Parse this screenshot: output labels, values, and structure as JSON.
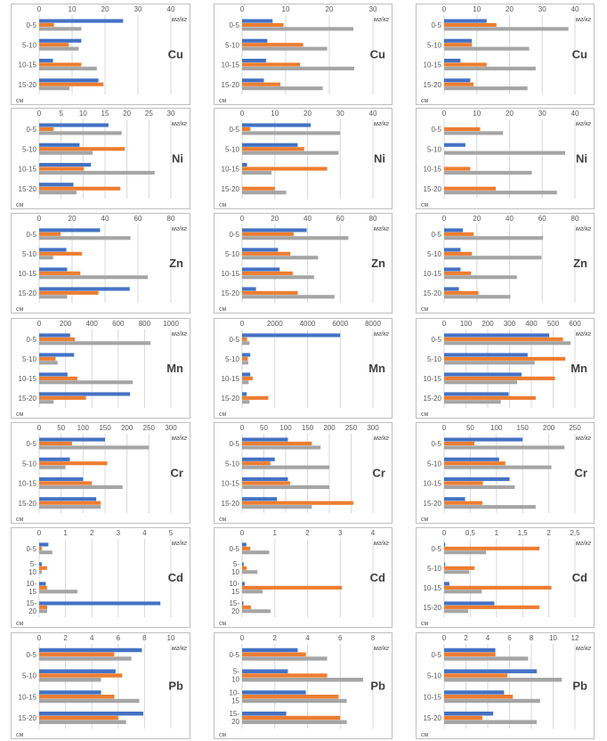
{
  "colors": {
    "s1": "#4472C4",
    "s2": "#ED7D31",
    "s3": "#A5A5A5",
    "grid": "#D9D9D9",
    "text": "#595959",
    "border": "#BFBFBF"
  },
  "unit_label": "мг/кг",
  "depth_suffix": "см",
  "chart_data": [
    {
      "type": "bar",
      "element": "Cu",
      "row": 0,
      "col": 0,
      "xlim": [
        0,
        40
      ],
      "ticks": [
        "0",
        "10",
        "20",
        "30",
        "40"
      ],
      "categories": [
        "0-5",
        "5-10",
        "10-15",
        "15-20"
      ],
      "series": [
        {
          "name": "s1",
          "values": [
            25.5,
            12.8,
            4.2,
            18
          ]
        },
        {
          "name": "s2",
          "values": [
            4.5,
            9,
            12.8,
            19.5
          ]
        },
        {
          "name": "s3",
          "values": [
            12.8,
            12,
            17.5,
            9.2
          ]
        }
      ]
    },
    {
      "type": "bar",
      "element": "Cu",
      "row": 0,
      "col": 1,
      "xlim": [
        0,
        30
      ],
      "ticks": [
        "0",
        "10",
        "20",
        "30"
      ],
      "categories": [
        "0-5",
        "5-10",
        "10-15",
        "15-20"
      ],
      "series": [
        {
          "name": "s1",
          "values": [
            7,
            5.8,
            5.5,
            5
          ]
        },
        {
          "name": "s2",
          "values": [
            9.5,
            14,
            13.3,
            8.8
          ]
        },
        {
          "name": "s3",
          "values": [
            25.5,
            19.5,
            25.7,
            18.5
          ]
        }
      ]
    },
    {
      "type": "bar",
      "element": "Cu",
      "row": 0,
      "col": 2,
      "xlim": [
        0,
        40
      ],
      "ticks": [
        "0",
        "10",
        "20",
        "30",
        "40"
      ],
      "categories": [
        "0-5",
        "5-10",
        "10-15",
        "15-20"
      ],
      "series": [
        {
          "name": "s1",
          "values": [
            13,
            8.5,
            5,
            8
          ]
        },
        {
          "name": "s2",
          "values": [
            16,
            8.5,
            13,
            9
          ]
        },
        {
          "name": "s3",
          "values": [
            38,
            26,
            28,
            25.5
          ]
        }
      ]
    },
    {
      "type": "bar",
      "element": "Ni",
      "row": 1,
      "col": 0,
      "xlim": [
        0,
        30
      ],
      "ticks": [
        "0",
        "5",
        "10",
        "15",
        "20",
        "25",
        "30"
      ],
      "categories": [
        "0-5",
        "5-10",
        "10-15",
        "15-20"
      ],
      "series": [
        {
          "name": "s1",
          "values": [
            15.8,
            9.2,
            11.8,
            7.8
          ]
        },
        {
          "name": "s2",
          "values": [
            3.3,
            19.5,
            10.2,
            18.5
          ]
        },
        {
          "name": "s3",
          "values": [
            18.8,
            12.2,
            26.3,
            8.5
          ]
        }
      ]
    },
    {
      "type": "bar",
      "element": "Ni",
      "row": 1,
      "col": 1,
      "xlim": [
        0,
        40
      ],
      "ticks": [
        "0",
        "10",
        "20",
        "30",
        "40"
      ],
      "categories": [
        "0-5",
        "5-10",
        "10-15",
        "15-20"
      ],
      "series": [
        {
          "name": "s1",
          "values": [
            21,
            17,
            1.5,
            0
          ]
        },
        {
          "name": "s2",
          "values": [
            2.5,
            19,
            26,
            10
          ]
        },
        {
          "name": "s3",
          "values": [
            30,
            29.5,
            9,
            13.5
          ]
        }
      ]
    },
    {
      "type": "bar",
      "element": "Ni",
      "row": 1,
      "col": 2,
      "xlim": [
        0,
        40
      ],
      "ticks": [
        "0",
        "10",
        "20",
        "30",
        "40"
      ],
      "categories": [
        "0-5",
        "5-10",
        "10-15",
        "15-20"
      ],
      "series": [
        {
          "name": "s1",
          "values": [
            0,
            6.5,
            0,
            0
          ]
        },
        {
          "name": "s2",
          "values": [
            11,
            0,
            8,
            15.8
          ]
        },
        {
          "name": "s3",
          "values": [
            18,
            37,
            26.8,
            34.5
          ]
        }
      ]
    },
    {
      "type": "bar",
      "element": "Zn",
      "row": 2,
      "col": 0,
      "xlim": [
        0,
        80
      ],
      "ticks": [
        "0",
        "20",
        "40",
        "60",
        "80"
      ],
      "categories": [
        "0-5",
        "5-10",
        "10-15",
        "15-20"
      ],
      "series": [
        {
          "name": "s1",
          "values": [
            37,
            16.5,
            17,
            55
          ]
        },
        {
          "name": "s2",
          "values": [
            13,
            26,
            25,
            36
          ]
        },
        {
          "name": "s3",
          "values": [
            55.5,
            8.5,
            66,
            17
          ]
        }
      ]
    },
    {
      "type": "bar",
      "element": "Zn",
      "row": 2,
      "col": 1,
      "xlim": [
        0,
        80
      ],
      "ticks": [
        "0",
        "20",
        "40",
        "60",
        "80"
      ],
      "categories": [
        "0-5",
        "5-10",
        "10-15",
        "15-20"
      ],
      "series": [
        {
          "name": "s1",
          "values": [
            39.5,
            22,
            23,
            8.5
          ]
        },
        {
          "name": "s2",
          "values": [
            31.5,
            29.5,
            31,
            34
          ]
        },
        {
          "name": "s3",
          "values": [
            65,
            46.5,
            44,
            56.5
          ]
        }
      ]
    },
    {
      "type": "bar",
      "element": "Zn",
      "row": 2,
      "col": 2,
      "xlim": [
        0,
        80
      ],
      "ticks": [
        "0",
        "20",
        "40",
        "60",
        "80"
      ],
      "categories": [
        "0-5",
        "5-10",
        "10-15",
        "15-20"
      ],
      "series": [
        {
          "name": "s1",
          "values": [
            11.5,
            10,
            10,
            9
          ]
        },
        {
          "name": "s2",
          "values": [
            18,
            17,
            16.5,
            21
          ]
        },
        {
          "name": "s3",
          "values": [
            60.5,
            59.5,
            44.5,
            40.5
          ]
        }
      ]
    },
    {
      "type": "bar",
      "element": "Mn",
      "row": 3,
      "col": 0,
      "xlim": [
        0,
        1000
      ],
      "ticks": [
        "0",
        "200",
        "400",
        "600",
        "800",
        "1000"
      ],
      "categories": [
        "0-5",
        "5-10",
        "10-15",
        "15-20"
      ],
      "series": [
        {
          "name": "s1",
          "values": [
            235,
            265,
            215,
            690
          ]
        },
        {
          "name": "s2",
          "values": [
            270,
            125,
            290,
            355
          ]
        },
        {
          "name": "s3",
          "values": [
            845,
            140,
            710,
            110
          ]
        }
      ]
    },
    {
      "type": "bar",
      "element": "Mn",
      "row": 3,
      "col": 1,
      "xlim": [
        0,
        8000
      ],
      "ticks": [
        "0",
        "2000",
        "4000",
        "6000",
        "8000"
      ],
      "categories": [
        "0-5",
        "5-10",
        "10-15",
        "15-20"
      ],
      "series": [
        {
          "name": "s1",
          "values": [
            6000,
            500,
            500,
            280
          ]
        },
        {
          "name": "s2",
          "values": [
            300,
            350,
            650,
            1600
          ]
        },
        {
          "name": "s3",
          "values": [
            450,
            380,
            400,
            450
          ]
        }
      ]
    },
    {
      "type": "bar",
      "element": "Mn",
      "row": 3,
      "col": 2,
      "xlim": [
        0,
        600
      ],
      "ticks": [
        "0",
        "100",
        "200",
        "300",
        "400",
        "500",
        "600"
      ],
      "categories": [
        "0-5",
        "5-10",
        "10-15",
        "15-20"
      ],
      "series": [
        {
          "name": "s1",
          "values": [
            482,
            383,
            355,
            296
          ]
        },
        {
          "name": "s2",
          "values": [
            545,
            555,
            508,
            420
          ]
        },
        {
          "name": "s3",
          "values": [
            580,
            415,
            335,
            260
          ]
        }
      ]
    },
    {
      "type": "bar",
      "element": "Cr",
      "row": 4,
      "col": 0,
      "xlim": [
        0,
        300
      ],
      "ticks": [
        "0",
        "50",
        "100",
        "150",
        "200",
        "250",
        "300"
      ],
      "categories": [
        "0-5",
        "5-10",
        "10-15",
        "15-20"
      ],
      "series": [
        {
          "name": "s1",
          "values": [
            150,
            70,
            100,
            130
          ]
        },
        {
          "name": "s2",
          "values": [
            75,
            155,
            120,
            140
          ]
        },
        {
          "name": "s3",
          "values": [
            250,
            60,
            190,
            140
          ]
        }
      ]
    },
    {
      "type": "bar",
      "element": "Cr",
      "row": 4,
      "col": 1,
      "xlim": [
        0,
        300
      ],
      "ticks": [
        "0",
        "50",
        "100",
        "150",
        "200",
        "250",
        "300"
      ],
      "categories": [
        "0-5",
        "5-10",
        "10-15",
        "15-20"
      ],
      "series": [
        {
          "name": "s1",
          "values": [
            105,
            75,
            105,
            80
          ]
        },
        {
          "name": "s2",
          "values": [
            160,
            65,
            110,
            255
          ]
        },
        {
          "name": "s3",
          "values": [
            180,
            200,
            200,
            160
          ]
        }
      ]
    },
    {
      "type": "bar",
      "element": "Cr",
      "row": 4,
      "col": 2,
      "xlim": [
        0,
        250
      ],
      "ticks": [
        "0",
        "50",
        "100",
        "150",
        "200",
        "250"
      ],
      "categories": [
        "0-5",
        "5-10",
        "10-15",
        "15-20"
      ],
      "series": [
        {
          "name": "s1",
          "values": [
            150,
            105,
            125,
            40
          ]
        },
        {
          "name": "s2",
          "values": [
            58,
            117,
            74,
            73
          ]
        },
        {
          "name": "s3",
          "values": [
            230,
            205,
            135,
            175
          ]
        }
      ]
    },
    {
      "type": "bar",
      "element": "Cd",
      "row": 5,
      "col": 0,
      "xlim": [
        0,
        5
      ],
      "ticks": [
        "0",
        "1",
        "2",
        "3",
        "4",
        "5"
      ],
      "categories": [
        "0-5",
        "5-10",
        "10-15",
        "15-20"
      ],
      "category_display": [
        "0-5",
        "5-\n10",
        "10-\n15",
        "15-\n20"
      ],
      "series": [
        {
          "name": "s1",
          "values": [
            0.35,
            0.1,
            0.25,
            4.6
          ]
        },
        {
          "name": "s2",
          "values": [
            0.1,
            0.3,
            0.3,
            0.3
          ]
        },
        {
          "name": "s3",
          "values": [
            0.5,
            0.1,
            1.45,
            0.3
          ]
        }
      ]
    },
    {
      "type": "bar",
      "element": "Cd",
      "row": 5,
      "col": 1,
      "xlim": [
        0,
        4
      ],
      "ticks": [
        "0",
        "1",
        "2",
        "3",
        "4"
      ],
      "categories": [
        "0-5",
        "5-10",
        "10-15",
        "15-20"
      ],
      "category_display": [
        "0-5",
        "5-\n10",
        "10-\n15",
        "15-\n20"
      ],
      "series": [
        {
          "name": "s1",
          "values": [
            0.13,
            0.05,
            0.08,
            0.04
          ]
        },
        {
          "name": "s2",
          "values": [
            0.25,
            0.14,
            3.05,
            0.27
          ]
        },
        {
          "name": "s3",
          "values": [
            0.83,
            0.47,
            0.63,
            0.87
          ]
        }
      ]
    },
    {
      "type": "bar",
      "element": "Cd",
      "row": 5,
      "col": 2,
      "xlim": [
        0,
        2.5
      ],
      "ticks": [
        "0",
        "0,5",
        "1",
        "1,5",
        "2",
        "2,5"
      ],
      "categories": [
        "0-5",
        "5-10",
        "10-15",
        "15-20"
      ],
      "series": [
        {
          "name": "s1",
          "values": [
            0.02,
            0.02,
            0.1,
            0.96
          ]
        },
        {
          "name": "s2",
          "values": [
            1.82,
            0.58,
            2.05,
            1.82
          ]
        },
        {
          "name": "s3",
          "values": [
            0.8,
            0.48,
            0.72,
            0.46
          ]
        }
      ]
    },
    {
      "type": "bar",
      "element": "Pb",
      "row": 6,
      "col": 0,
      "xlim": [
        0,
        10
      ],
      "ticks": [
        "0",
        "2",
        "4",
        "6",
        "8",
        "10"
      ],
      "categories": [
        "0-5",
        "5-10",
        "10-15",
        "15-20"
      ],
      "series": [
        {
          "name": "s1",
          "values": [
            7.8,
            5.8,
            4.7,
            7.9
          ]
        },
        {
          "name": "s2",
          "values": [
            5.7,
            6.3,
            5.7,
            6
          ]
        },
        {
          "name": "s3",
          "values": [
            7,
            4.7,
            7.6,
            6.6
          ]
        }
      ]
    },
    {
      "type": "bar",
      "element": "Pb",
      "row": 6,
      "col": 1,
      "xlim": [
        0,
        8
      ],
      "ticks": [
        "0",
        "2",
        "4",
        "6",
        "8"
      ],
      "categories": [
        "0-5",
        "5-10",
        "10-15",
        "15-20"
      ],
      "category_display": [
        "0-5",
        "5-\n10",
        "10-\n15",
        "15-\n20"
      ],
      "series": [
        {
          "name": "s1",
          "values": [
            3.4,
            2.8,
            3.9,
            2.7
          ]
        },
        {
          "name": "s2",
          "values": [
            3.9,
            5.2,
            5.9,
            6
          ]
        },
        {
          "name": "s3",
          "values": [
            5.2,
            7.4,
            6.4,
            6.4
          ]
        }
      ]
    },
    {
      "type": "bar",
      "element": "Pb",
      "row": 6,
      "col": 2,
      "xlim": [
        0,
        12
      ],
      "ticks": [
        "0",
        "2",
        "4",
        "6",
        "8",
        "10",
        "12"
      ],
      "categories": [
        "0-5",
        "5-10",
        "10-15",
        "15-20"
      ],
      "series": [
        {
          "name": "s1",
          "values": [
            4.7,
            8.5,
            5.5,
            4.5
          ]
        },
        {
          "name": "s2",
          "values": [
            4.7,
            5.8,
            6.3,
            3.5
          ]
        },
        {
          "name": "s3",
          "values": [
            7.7,
            10.8,
            8.8,
            8.5
          ]
        }
      ]
    }
  ]
}
